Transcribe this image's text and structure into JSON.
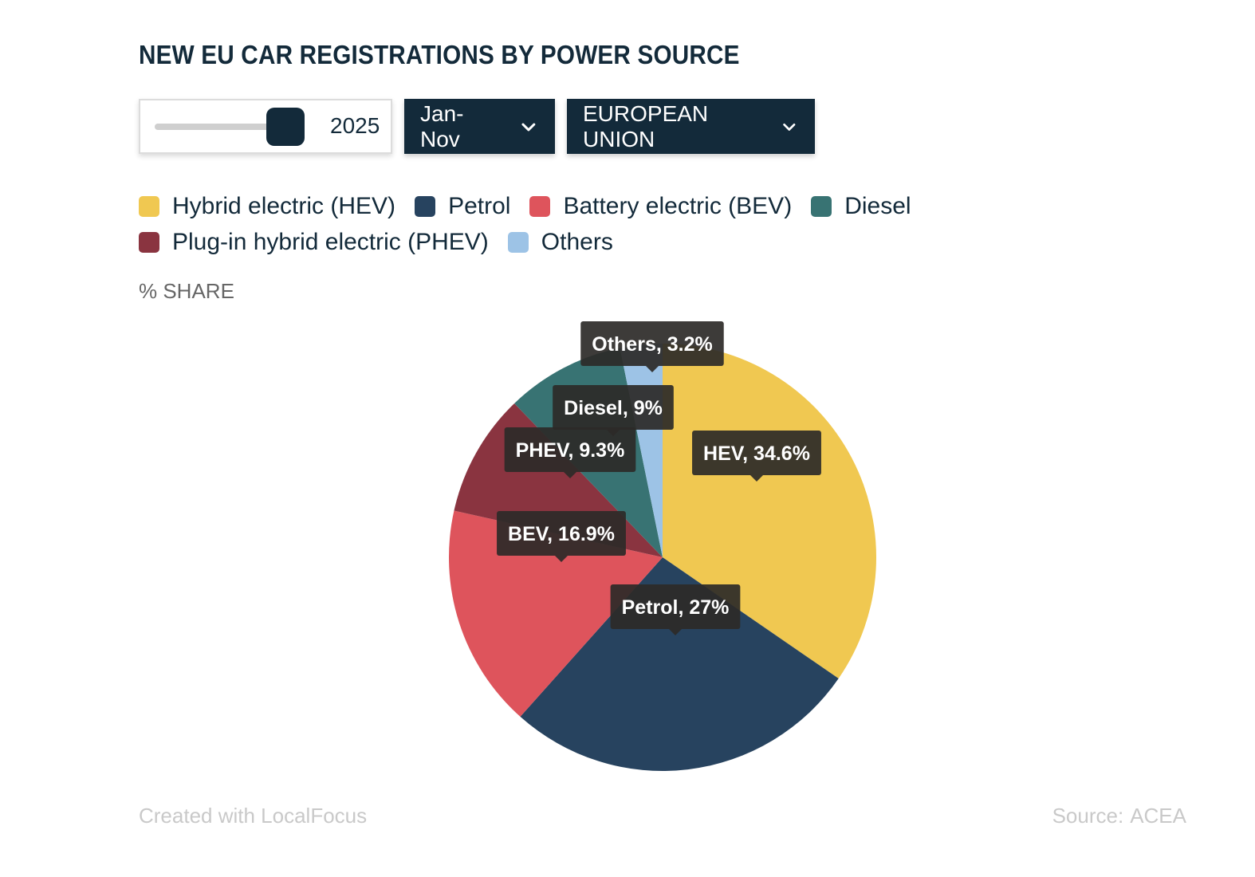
{
  "title": "NEW EU CAR REGISTRATIONS BY POWER SOURCE",
  "controls": {
    "year_value": "2025",
    "year_slider_level": 0.9,
    "period_label": "Jan-Nov",
    "region_label": "EUROPEAN UNION"
  },
  "legend": {
    "items": [
      {
        "label": "Hybrid electric (HEV)",
        "color": "#f0c851"
      },
      {
        "label": "Petrol",
        "color": "#27435f"
      },
      {
        "label": "Battery electric (BEV)",
        "color": "#de545c"
      },
      {
        "label": "Diesel",
        "color": "#387373"
      },
      {
        "label": "Plug-in hybrid electric (PHEV)",
        "color": "#8a3440"
      },
      {
        "label": "Others",
        "color": "#9dc3e6"
      }
    ]
  },
  "axis_label": "% SHARE",
  "footer": {
    "created_with": "Created with LocalFocus",
    "source_label": "Source:",
    "source_value": "ACEA"
  },
  "chart_data": {
    "type": "pie",
    "title": "NEW EU CAR REGISTRATIONS BY POWER SOURCE",
    "unit": "% SHARE",
    "slices": [
      {
        "short": "HEV",
        "name": "Hybrid electric (HEV)",
        "value": 34.6,
        "color": "#f0c851",
        "tooltip": "HEV, 34.6%"
      },
      {
        "short": "Petrol",
        "name": "Petrol",
        "value": 27,
        "color": "#27435f",
        "tooltip": "Petrol, 27%"
      },
      {
        "short": "BEV",
        "name": "Battery electric (BEV)",
        "value": 16.9,
        "color": "#de545c",
        "tooltip": "BEV, 16.9%"
      },
      {
        "short": "PHEV",
        "name": "Plug-in hybrid electric (PHEV)",
        "value": 9.3,
        "color": "#8a3440",
        "tooltip": "PHEV, 9.3%"
      },
      {
        "short": "Diesel",
        "name": "Diesel",
        "value": 9,
        "color": "#387373",
        "tooltip": "Diesel, 9%"
      },
      {
        "short": "Others",
        "name": "Others",
        "value": 3.2,
        "color": "#9dc3e6",
        "tooltip": "Others, 3.2%"
      }
    ]
  }
}
